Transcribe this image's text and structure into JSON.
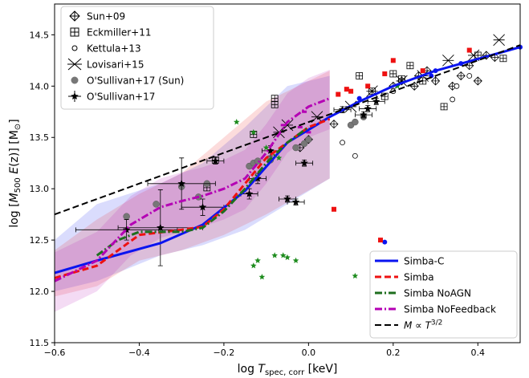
{
  "chart_data": {
    "type": "scatter",
    "xlabel": "log T_spec,corr [keV]",
    "ylabel": "log [M500 E(z)] [M⊙]",
    "xlim": [
      -0.6,
      0.5
    ],
    "ylim": [
      11.5,
      14.8
    ],
    "xticks": [
      "−0.6",
      "−0.4",
      "−0.2",
      "0.0",
      "0.2",
      "0.4"
    ],
    "xtick_values": [
      -0.6,
      -0.4,
      -0.2,
      0.0,
      0.2,
      0.4
    ],
    "yticks": [
      "11.5",
      "12.0",
      "12.5",
      "13.0",
      "13.5",
      "14.0",
      "14.5"
    ],
    "ytick_values": [
      11.5,
      12.0,
      12.5,
      13.0,
      13.5,
      14.0,
      14.5
    ],
    "grid": false,
    "legend_left": {
      "placement": "top-left",
      "entries": [
        {
          "label": "Sun+09",
          "marker": "thin-diamond-plus"
        },
        {
          "label": "Eckmiller+11",
          "marker": "square-plus"
        },
        {
          "label": "Kettula+13",
          "marker": "small-circle"
        },
        {
          "label": "Lovisari+15",
          "marker": "x-star"
        },
        {
          "label": "O'Sullivan+17 (Sun)",
          "marker": "grey-circle"
        },
        {
          "label": "O'Sullivan+17",
          "marker": "black-star-errorbar"
        }
      ]
    },
    "legend_right": {
      "placement": "bottom-right",
      "entries": [
        {
          "label": "Simba-C",
          "color": "#0a14f0",
          "dash": "solid"
        },
        {
          "label": "Simba",
          "color": "#ee1111",
          "dash": "dashed"
        },
        {
          "label": "Simba NoAGN",
          "color": "#1e6e1e",
          "dash": "dashdot"
        },
        {
          "label": "Simba NoFeedback",
          "color": "#b400b4",
          "dash": "dashdot"
        },
        {
          "label": "M ∝ T^3/2",
          "color": "#000000",
          "dash": "dashed"
        }
      ]
    },
    "series": [
      {
        "name": "Simba-C",
        "color": "#0a14f0",
        "x": [
          -0.6,
          -0.5,
          -0.35,
          -0.25,
          -0.15,
          -0.05,
          0.05,
          0.12,
          0.2,
          0.3,
          0.5
        ],
        "y": [
          12.18,
          12.3,
          12.47,
          12.65,
          12.98,
          13.45,
          13.7,
          13.85,
          14.0,
          14.15,
          14.38
        ],
        "band_lo": [
          12.0,
          12.1,
          12.35,
          12.45,
          12.6,
          12.85,
          13.1
        ],
        "band_hi": [
          12.5,
          12.85,
          13.05,
          13.25,
          13.6,
          14.0,
          14.1
        ],
        "band_x": [
          -0.6,
          -0.5,
          -0.35,
          -0.25,
          -0.15,
          -0.05,
          0.05
        ]
      },
      {
        "name": "Simba",
        "color": "#ee1111",
        "x": [
          -0.6,
          -0.5,
          -0.4,
          -0.3,
          -0.25,
          -0.2,
          -0.15,
          -0.1,
          -0.05,
          0.0,
          0.05
        ],
        "y": [
          12.13,
          12.25,
          12.55,
          12.6,
          12.63,
          12.8,
          13.05,
          13.3,
          13.45,
          13.6,
          13.68
        ],
        "band_lo": [
          11.95,
          12.05,
          12.3,
          12.4,
          12.55,
          12.75,
          13.1
        ],
        "band_hi": [
          12.4,
          12.7,
          12.95,
          13.15,
          13.5,
          13.85,
          14.15
        ],
        "band_x": [
          -0.6,
          -0.5,
          -0.4,
          -0.3,
          -0.2,
          -0.1,
          0.05
        ]
      },
      {
        "name": "Simba NoAGN",
        "color": "#1e6e1e",
        "x": [
          -0.5,
          -0.45,
          -0.4,
          -0.35,
          -0.3,
          -0.25,
          -0.2,
          -0.15,
          -0.1,
          -0.05,
          0.0
        ],
        "y": [
          12.35,
          12.5,
          12.58,
          12.58,
          12.58,
          12.62,
          12.78,
          13.0,
          13.25,
          13.45,
          13.6
        ]
      },
      {
        "name": "Simba NoFeedback",
        "color": "#b400b4",
        "x": [
          -0.6,
          -0.5,
          -0.42,
          -0.35,
          -0.3,
          -0.25,
          -0.2,
          -0.15,
          -0.1,
          -0.05,
          0.0,
          0.05
        ],
        "y": [
          12.1,
          12.3,
          12.65,
          12.82,
          12.88,
          12.93,
          13.0,
          13.1,
          13.35,
          13.65,
          13.8,
          13.88
        ]
      },
      {
        "name": "M ∝ T^3/2",
        "color": "#000000",
        "x": [
          -0.6,
          0.5
        ],
        "y": [
          12.75,
          14.4
        ]
      }
    ],
    "scatter": {
      "sun09": {
        "x": [
          0.06,
          0.0,
          -0.02,
          0.2,
          0.22,
          0.26,
          0.3,
          0.34,
          0.36,
          0.38,
          0.4,
          0.42,
          0.44,
          0.25,
          0.28
        ],
        "y": [
          13.63,
          13.48,
          13.4,
          14.0,
          14.05,
          14.1,
          14.05,
          14.0,
          14.1,
          14.2,
          14.05,
          14.3,
          14.28,
          14.0,
          14.15
        ]
      },
      "eckmiller11": {
        "x": [
          -0.08,
          -0.08,
          -0.13,
          -0.22,
          -0.24,
          0.12,
          0.15,
          0.2,
          0.22,
          0.24,
          0.32,
          0.4,
          0.46,
          0.18,
          0.27
        ],
        "y": [
          13.88,
          13.82,
          13.53,
          13.28,
          13.01,
          14.1,
          13.95,
          14.12,
          14.07,
          14.2,
          13.8,
          14.3,
          14.27,
          13.9,
          14.05
        ]
      },
      "kettula13": {
        "x": [
          0.08,
          0.11,
          0.34,
          0.35,
          0.38,
          0.2
        ],
        "y": [
          13.45,
          13.32,
          13.87,
          14.0,
          14.1,
          13.95
        ]
      },
      "lovisari15": {
        "x": [
          -0.05,
          0.02,
          0.15,
          0.22,
          0.27,
          0.33,
          0.39,
          0.45,
          -0.07,
          0.1
        ],
        "y": [
          13.62,
          13.7,
          13.95,
          14.05,
          14.1,
          14.25,
          14.3,
          14.45,
          13.55,
          13.8
        ]
      },
      "osullivan17_sun": {
        "x": [
          -0.43,
          -0.36,
          -0.3,
          -0.26,
          -0.24,
          -0.14,
          -0.13,
          -0.12,
          -0.09,
          -0.03,
          -0.01,
          0.0,
          0.1,
          0.11,
          0.13
        ],
        "y": [
          12.73,
          12.85,
          13.02,
          12.92,
          13.05,
          13.22,
          13.25,
          13.27,
          13.28,
          13.4,
          13.44,
          13.48,
          13.62,
          13.65,
          13.7
        ]
      },
      "osullivan17": {
        "x": [
          -0.43,
          -0.35,
          -0.3,
          -0.25,
          -0.22,
          -0.14,
          -0.12,
          -0.09,
          -0.05,
          -0.03,
          -0.01,
          0.08,
          0.13,
          0.14,
          0.16
        ],
        "y": [
          12.6,
          12.62,
          13.05,
          12.82,
          13.27,
          12.95,
          13.1,
          13.37,
          12.9,
          12.87,
          13.25,
          13.77,
          13.72,
          13.78,
          13.85
        ],
        "xerr": [
          0.12,
          0.1,
          0.08,
          0.05,
          0.02,
          0.02,
          0.02,
          0.02,
          0.02,
          0.02,
          0.02,
          0.02,
          0.02,
          0.02,
          0.02
        ],
        "yerr": [
          0.1,
          0.37,
          0.25,
          0.08,
          0.03,
          0.05,
          0.05,
          0.05,
          0.03,
          0.03,
          0.03,
          0.03,
          0.03,
          0.03,
          0.03
        ]
      },
      "simba_c_pts": {
        "x": [
          0.18,
          0.29,
          0.3,
          0.36,
          0.5,
          0.12
        ],
        "y": [
          12.48,
          14.1,
          14.15,
          14.22,
          14.38,
          13.88
        ]
      },
      "simba_pts": {
        "x": [
          0.06,
          0.17,
          0.07,
          0.09,
          0.1,
          0.14,
          0.18,
          0.2,
          0.27,
          0.38
        ],
        "y": [
          12.8,
          12.5,
          13.92,
          13.97,
          13.95,
          14.0,
          14.12,
          14.25,
          14.15,
          14.35
        ]
      },
      "noagn_pts": {
        "x": [
          -0.13,
          -0.12,
          -0.11,
          -0.08,
          -0.05,
          -0.06,
          -0.03,
          0.11,
          0.21,
          -0.17,
          -0.13,
          -0.1,
          -0.07
        ],
        "y": [
          12.25,
          12.3,
          12.14,
          12.35,
          12.33,
          12.35,
          12.3,
          12.15,
          14.0,
          13.65,
          13.55,
          13.4,
          13.3
        ]
      },
      "nofb_pts": {
        "x": [
          -0.01,
          -0.06,
          -0.02,
          0.0
        ],
        "y": [
          13.75,
          13.62,
          13.6,
          13.55
        ]
      }
    }
  }
}
